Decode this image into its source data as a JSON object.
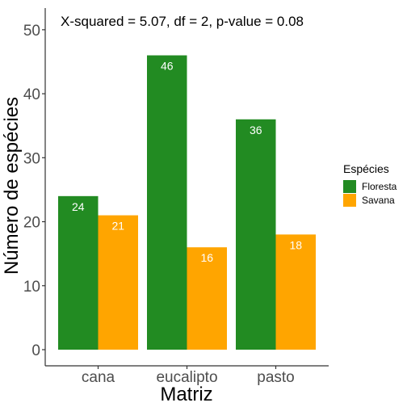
{
  "chart_data": {
    "type": "bar",
    "categories": [
      "cana",
      "eucalipto",
      "pasto"
    ],
    "series": [
      {
        "name": "Floresta",
        "values": [
          24,
          46,
          36
        ],
        "color": "#228B22"
      },
      {
        "name": "Savana",
        "values": [
          21,
          16,
          18
        ],
        "color": "#FFA500"
      }
    ],
    "xlabel": "Matriz",
    "ylabel": "Número de espécies",
    "ylim": [
      0,
      52
    ],
    "yticks": [
      0,
      10,
      20,
      30,
      40,
      50
    ],
    "annotation": "X-squared = 5.07, df = 2, p-value = 0.08",
    "legend_title": "Espécies",
    "legend_position": "right",
    "grid": false
  }
}
